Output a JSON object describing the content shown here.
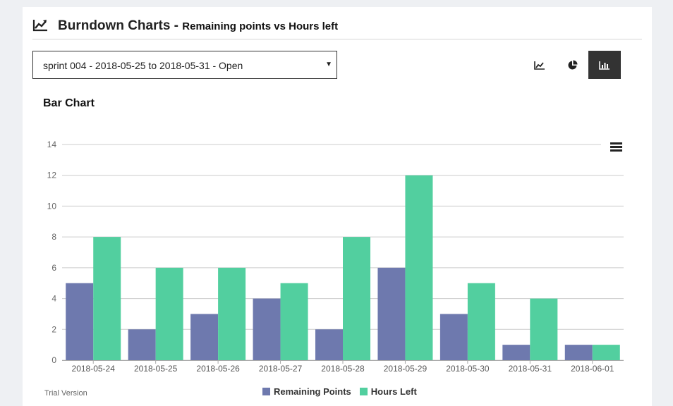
{
  "header": {
    "title": "Burndown Charts -",
    "subtitle": "Remaining points vs Hours left"
  },
  "sprint_select": {
    "value": "sprint 004 - 2018-05-25 to 2018-05-31 - Open"
  },
  "chart_buttons": [
    {
      "icon": "line-chart-icon",
      "active": false
    },
    {
      "icon": "pie-chart-icon",
      "active": false
    },
    {
      "icon": "bar-chart-icon",
      "active": true
    }
  ],
  "chart_title": "Bar Chart",
  "trial_text": "Trial Version",
  "colors": {
    "remaining": "#6e79ae",
    "hours": "#52cf9f",
    "active_button": "#333333"
  },
  "chart_data": {
    "type": "bar",
    "title": "Bar Chart",
    "xlabel": "",
    "ylabel": "",
    "categories": [
      "2018-05-24",
      "2018-05-25",
      "2018-05-26",
      "2018-05-27",
      "2018-05-28",
      "2018-05-29",
      "2018-05-30",
      "2018-05-31",
      "2018-06-01"
    ],
    "series": [
      {
        "name": "Remaining Points",
        "values": [
          5,
          2,
          3,
          4,
          2,
          6,
          3,
          1,
          1
        ]
      },
      {
        "name": "Hours Left",
        "values": [
          8,
          6,
          6,
          5,
          8,
          12,
          5,
          4,
          1
        ]
      }
    ],
    "ylim": [
      0,
      14
    ],
    "yticks": [
      0,
      2,
      4,
      6,
      8,
      10,
      12,
      14
    ],
    "grid": true,
    "legend": "bottom-center"
  }
}
